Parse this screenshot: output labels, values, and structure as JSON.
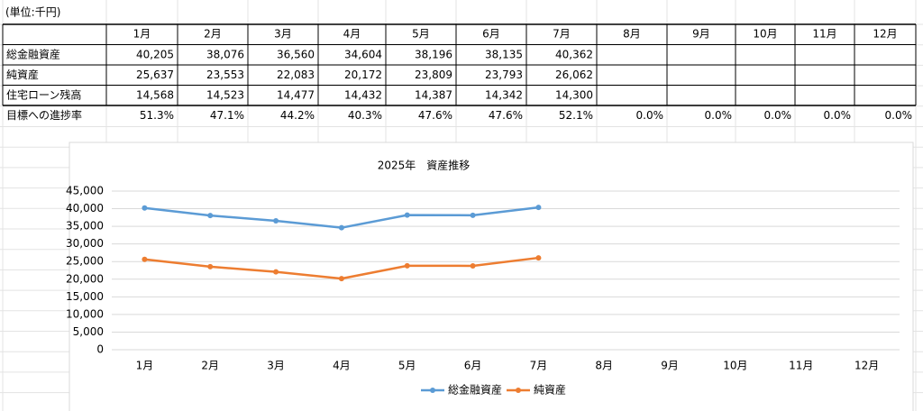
{
  "unit_note": "(単位:千円)",
  "table": {
    "header": [
      "1月",
      "2月",
      "3月",
      "4月",
      "5月",
      "6月",
      "7月",
      "8月",
      "9月",
      "10月",
      "11月",
      "12月"
    ],
    "rows": [
      {
        "label": "総金融資産",
        "cells": [
          "40,205",
          "38,076",
          "36,560",
          "34,604",
          "38,196",
          "38,135",
          "40,362"
        ]
      },
      {
        "label": "純資産",
        "cells": [
          "25,637",
          "23,553",
          "22,083",
          "20,172",
          "23,809",
          "23,793",
          "26,062"
        ]
      },
      {
        "label": "住宅ローン残高",
        "color": "#ee3a3a",
        "cells": [
          "14,568",
          "14,523",
          "14,477",
          "14,432",
          "14,387",
          "14,342",
          "14,300"
        ]
      },
      {
        "label": "目標への進捗率",
        "cells": [
          "51.3%",
          "47.1%",
          "44.2%",
          "40.3%",
          "47.6%",
          "47.6%",
          "52.1%",
          "0.0%",
          "0.0%",
          "0.0%",
          "0.0%",
          "0.0%"
        ]
      }
    ]
  },
  "chart_data": {
    "type": "line",
    "title": "2025年　資産推移",
    "categories": [
      "1月",
      "2月",
      "3月",
      "4月",
      "5月",
      "6月",
      "7月",
      "8月",
      "9月",
      "10月",
      "11月",
      "12月"
    ],
    "series": [
      {
        "name": "総金融資産",
        "color": "#5b9bd5",
        "values": [
          40205,
          38076,
          36560,
          34604,
          38196,
          38135,
          40362,
          null,
          null,
          null,
          null,
          null
        ]
      },
      {
        "name": "純資産",
        "color": "#ed7d31",
        "values": [
          25637,
          23553,
          22083,
          20172,
          23809,
          23793,
          26062,
          null,
          null,
          null,
          null,
          null
        ]
      }
    ],
    "ylim": [
      0,
      45000
    ],
    "yticks": [
      0,
      {
        "value": 5000,
        "label": "5,000"
      },
      {
        "value": 10000,
        "label": "10,000"
      },
      {
        "value": 15000,
        "label": "15,000"
      },
      {
        "value": 20000,
        "label": "20,000"
      },
      {
        "value": 25000,
        "label": "25,000"
      },
      {
        "value": 30000,
        "label": "30,000"
      },
      {
        "value": 35000,
        "label": "35,000"
      },
      {
        "value": 40000,
        "label": "40,000"
      },
      {
        "value": 45000,
        "label": "45,000"
      }
    ],
    "grid": true,
    "legend": "bottom"
  }
}
